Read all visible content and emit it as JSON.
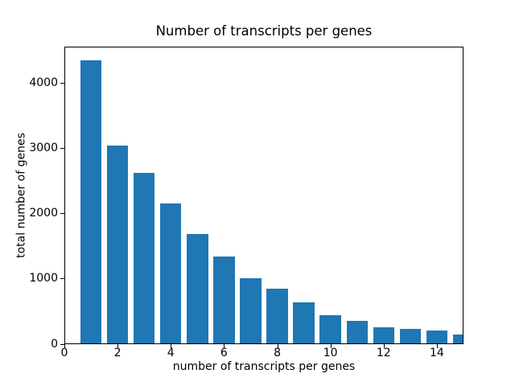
{
  "chart_data": {
    "type": "bar",
    "title": "Number of transcripts per genes",
    "xlabel": "number of transcripts per genes",
    "ylabel": "total number of genes",
    "categories": [
      1,
      2,
      3,
      4,
      5,
      6,
      7,
      8,
      9,
      10,
      11,
      12,
      13,
      14,
      15
    ],
    "values": [
      4350,
      3035,
      2620,
      2150,
      1675,
      1330,
      1005,
      845,
      630,
      430,
      350,
      245,
      225,
      195,
      140
    ],
    "bar_width": 0.8,
    "bar_color": "#1f77b4",
    "axis_color": "#000000",
    "text_color": "#000000",
    "background_color": "#ffffff",
    "xlim": [
      0,
      15
    ],
    "ylim": [
      0,
      4566
    ],
    "x_ticks": [
      0,
      2,
      4,
      6,
      8,
      10,
      12,
      14
    ],
    "y_ticks": [
      0,
      1000,
      2000,
      3000,
      4000
    ],
    "grid": false,
    "legend": "none"
  }
}
